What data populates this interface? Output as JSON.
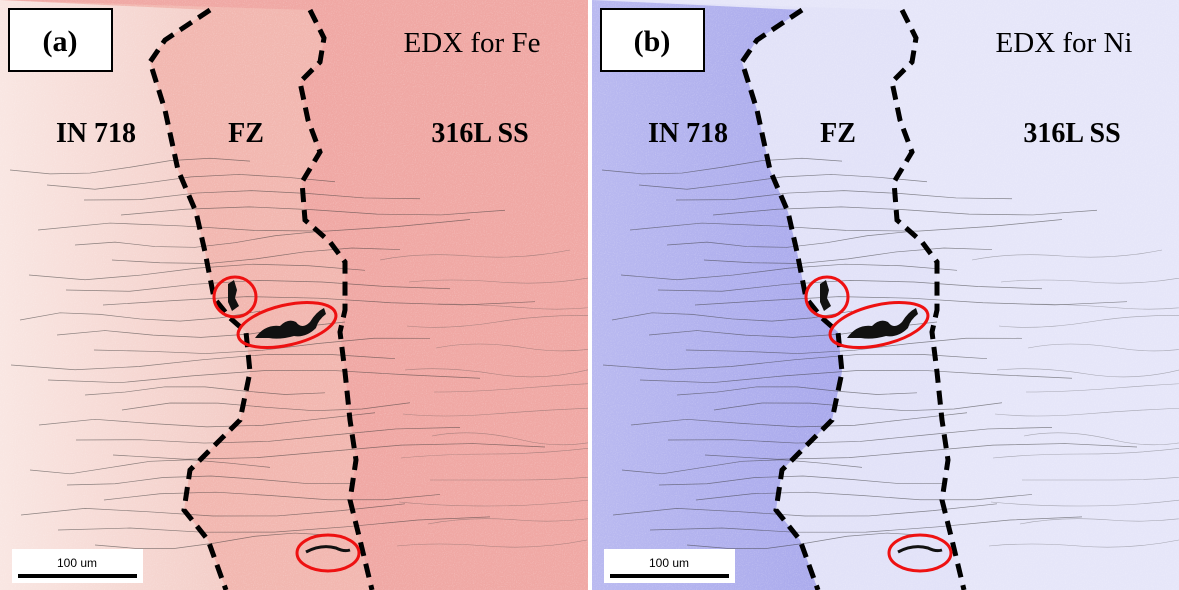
{
  "panels": [
    {
      "label": "(a)",
      "title": "EDX for Fe",
      "regions": [
        "IN 718",
        "FZ",
        "316L SS"
      ],
      "scale_bar": "100 um"
    },
    {
      "label": "(b)",
      "title": "EDX for Ni",
      "regions": [
        "IN 718",
        "FZ",
        "316L SS"
      ],
      "scale_bar": "100 um"
    }
  ]
}
